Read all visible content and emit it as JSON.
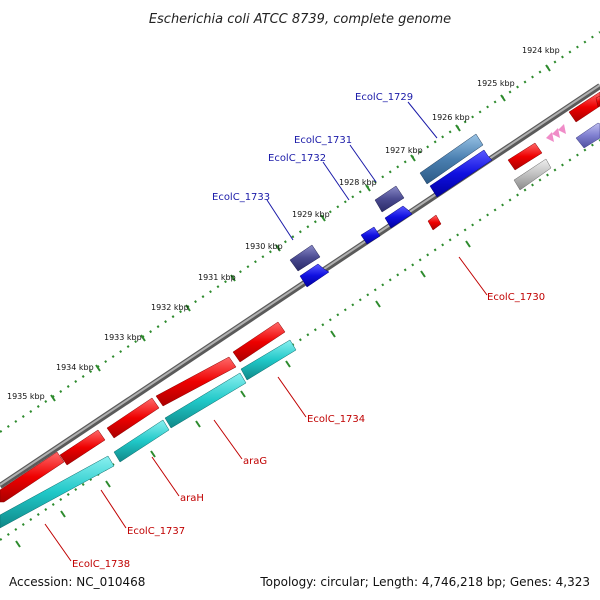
{
  "title": "Escherichia coli ATCC 8739, complete genome",
  "footer": {
    "accession": "Accession: NC_010468",
    "topology": "Topology: circular; Length: 4,746,218 bp; Genes: 4,323"
  },
  "kbp_labels": [
    "1924 kbp",
    "1925 kbp",
    "1926 kbp",
    "1927 kbp",
    "1928 kbp",
    "1929 kbp",
    "1930 kbp",
    "1931 kbp",
    "1932 kbp",
    "1933 kbp",
    "1934 kbp",
    "1935 kbp"
  ],
  "gene_labels": {
    "ecolc_1729": "EcolC_1729",
    "ecolc_1731": "EcolC_1731",
    "ecolc_1732": "EcolC_1732",
    "ecolc_1733": "EcolC_1733",
    "ecolc_1730": "EcolC_1730",
    "ecolc_1734": "EcolC_1734",
    "arag": "araG",
    "arah": "araH",
    "ecolc_1737": "EcolC_1737",
    "ecolc_1738": "EcolC_1738"
  },
  "colors": {
    "backbone": "#808080",
    "tick_green": "#2e8b2e",
    "forward_gene": "#e60000",
    "reverse_gene": "#1010e0",
    "cds_teal": "#20c8c8",
    "steelblue_gene": "#4a7fb0",
    "slate_gene": "#4a4a90",
    "grey_gene": "#c0c0c0",
    "pink_gene": "#f08cc8",
    "lavender_gene": "#8080d0"
  }
}
